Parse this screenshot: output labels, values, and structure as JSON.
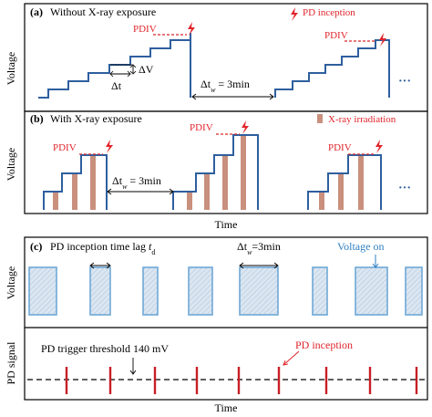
{
  "panel_a": {
    "label": "(a)",
    "title": "Without X-ray exposure",
    "legend": "PD inception",
    "ylabel": "Voltage",
    "pdiv_1": "PDIV",
    "pdiv_2": "PDIV",
    "dV": "ΔV",
    "dt": "Δt",
    "tw_prefix": "Δt",
    "tw_sub": "w",
    "tw_value": " = 3min"
  },
  "panel_b": {
    "label": "(b)",
    "title": "With X-ray exposure",
    "legend": "X-ray irradiation",
    "ylabel": "Voltage",
    "pdiv_1": "PDIV",
    "pdiv_2": "PDIV",
    "pdiv_3": "PDIV",
    "tw_prefix": "Δt",
    "tw_sub": "w",
    "tw_value": " = 3min",
    "xlabel": "Time"
  },
  "panel_c": {
    "label": "(c)",
    "lag_text": "PD inception time lag ",
    "lag_var": "t",
    "lag_sub": "d",
    "tw_prefix": "Δt",
    "tw_sub": "w",
    "tw_value": "=3min",
    "voltage_on": "Voltage on",
    "ylabel_top": "Voltage",
    "ylabel_bottom": "PD signal",
    "threshold": "PD trigger threshold 140 mV",
    "inception": "PD inception",
    "xlabel": "Time"
  },
  "ellipsis": "···",
  "colors": {
    "staircase": "#2e5f9e",
    "pd_red": "#e0242b",
    "pdiv_dash": "#d9262c",
    "xray_bar": "#c9907e",
    "pulse_fill": "#dbe6f1",
    "pulse_stroke": "#6fa8d6",
    "pd_line": "#c81e25",
    "voltage_on": "#2f7fc1"
  }
}
